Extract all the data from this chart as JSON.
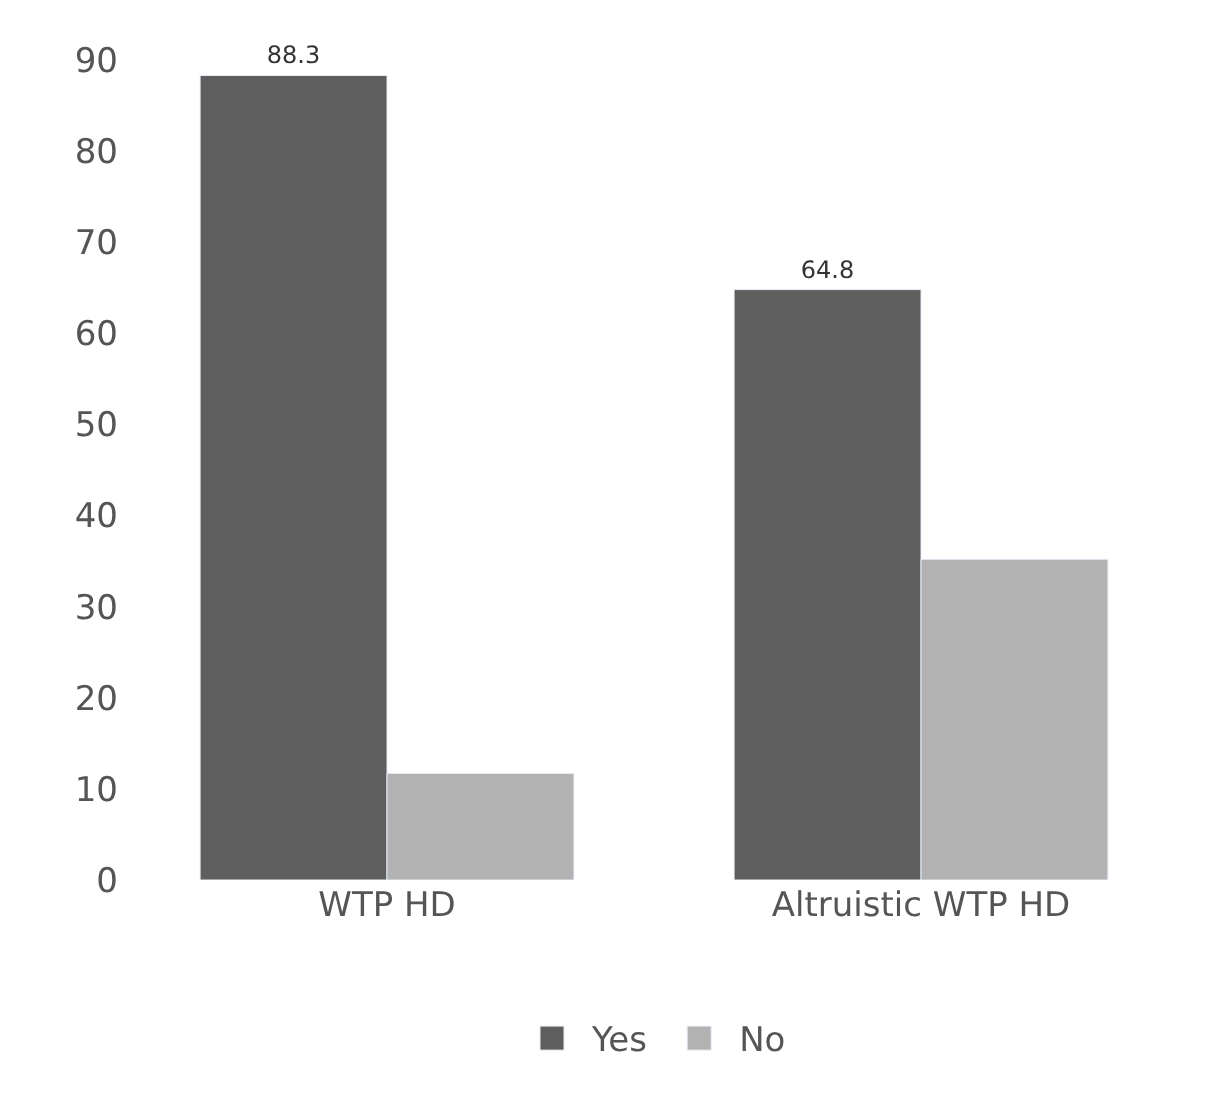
{
  "chart_data": {
    "type": "bar",
    "categories": [
      "WTP HD",
      "Altruistic WTP HD"
    ],
    "series": [
      {
        "name": "Yes",
        "color": "#5e5e5e",
        "values": [
          88.3,
          64.8
        ],
        "value_labels": [
          "88.3",
          "64.8"
        ]
      },
      {
        "name": "No",
        "color": "#b2b2b2",
        "values": [
          11.7,
          35.2
        ]
      }
    ],
    "ylim": [
      0,
      90
    ],
    "yticks": [
      0,
      10,
      20,
      30,
      40,
      50,
      60,
      70,
      80,
      90
    ],
    "grid": false,
    "legend": "bottom"
  }
}
